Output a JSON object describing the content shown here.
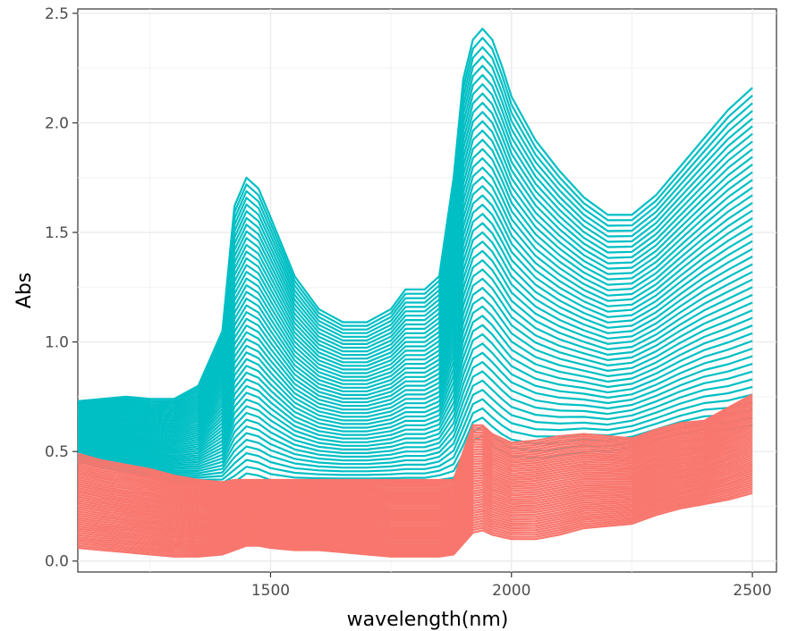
{
  "chart_data": {
    "type": "line",
    "title": "",
    "xlabel": "wavelength(nm)",
    "ylabel": "Abs",
    "xlim": [
      1100,
      2550
    ],
    "ylim": [
      -0.05,
      2.52
    ],
    "x_ticks": [
      1500,
      2000,
      2500
    ],
    "x_tick_labels": [
      "1500",
      "2000",
      "2500"
    ],
    "y_ticks": [
      0.0,
      0.5,
      1.0,
      1.5,
      2.0,
      2.5
    ],
    "y_tick_labels": [
      "0.0",
      "0.5",
      "1.0",
      "1.5",
      "2.0",
      "2.5"
    ],
    "grid": true,
    "legend": "none",
    "x": [
      1100,
      1150,
      1200,
      1250,
      1300,
      1350,
      1400,
      1425,
      1450,
      1475,
      1500,
      1550,
      1600,
      1650,
      1700,
      1750,
      1780,
      1820,
      1850,
      1880,
      1900,
      1920,
      1940,
      1960,
      1980,
      2000,
      2050,
      2100,
      2150,
      2200,
      2250,
      2300,
      2350,
      2400,
      2450,
      2500
    ],
    "series": [
      {
        "group": "teal",
        "color": "#00BFC4",
        "upper": [
          0.73,
          0.74,
          0.75,
          0.74,
          0.74,
          0.8,
          1.05,
          1.62,
          1.75,
          1.7,
          1.57,
          1.3,
          1.15,
          1.09,
          1.09,
          1.15,
          1.24,
          1.24,
          1.3,
          1.75,
          2.2,
          2.38,
          2.43,
          2.38,
          2.26,
          2.12,
          1.92,
          1.78,
          1.66,
          1.58,
          1.58,
          1.67,
          1.8,
          1.93,
          2.06,
          2.16
        ],
        "lower": [
          0.45,
          0.43,
          0.41,
          0.39,
          0.36,
          0.35,
          0.34,
          0.36,
          0.4,
          0.39,
          0.37,
          0.36,
          0.36,
          0.36,
          0.36,
          0.36,
          0.36,
          0.36,
          0.37,
          0.38,
          0.45,
          0.55,
          0.57,
          0.53,
          0.5,
          0.48,
          0.47,
          0.48,
          0.5,
          0.5,
          0.52,
          0.55,
          0.58,
          0.6,
          0.6,
          0.62
        ]
      },
      {
        "group": "red",
        "color": "#F8766D",
        "upper": [
          0.49,
          0.46,
          0.44,
          0.42,
          0.39,
          0.37,
          0.36,
          0.37,
          0.37,
          0.37,
          0.37,
          0.37,
          0.37,
          0.37,
          0.37,
          0.37,
          0.37,
          0.37,
          0.37,
          0.37,
          0.5,
          0.62,
          0.62,
          0.58,
          0.56,
          0.54,
          0.55,
          0.57,
          0.58,
          0.57,
          0.56,
          0.6,
          0.63,
          0.64,
          0.7,
          0.76
        ],
        "lower": [
          0.06,
          0.05,
          0.04,
          0.03,
          0.02,
          0.02,
          0.03,
          0.05,
          0.07,
          0.07,
          0.06,
          0.05,
          0.05,
          0.04,
          0.03,
          0.02,
          0.02,
          0.02,
          0.02,
          0.03,
          0.08,
          0.13,
          0.14,
          0.12,
          0.11,
          0.1,
          0.1,
          0.12,
          0.15,
          0.16,
          0.17,
          0.21,
          0.24,
          0.26,
          0.28,
          0.31
        ]
      }
    ]
  }
}
